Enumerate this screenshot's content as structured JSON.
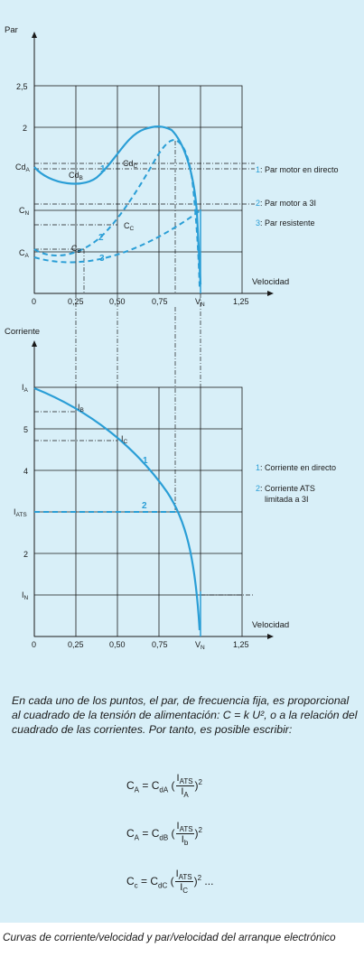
{
  "top_chart": {
    "y_title": "Par",
    "x_title": "Velocidad",
    "y_ticks": {
      "val": "2,5",
      "two": "2",
      "cda": "Cd",
      "cda_sub": "A",
      "cn": "C",
      "cn_sub": "N",
      "ca": "C",
      "ca_sub": "A"
    },
    "x_ticks": [
      "0",
      "0,25",
      "0,50",
      "0,75",
      "V",
      "1,25"
    ],
    "x_tick_vn_sub": "N",
    "points": {
      "cdb": "Cd",
      "cdb_sub": "B",
      "cdc": "Cd",
      "cdc_sub": "C",
      "cc": "C",
      "cc_sub": "C",
      "cb": "C",
      "cb_sub": "B"
    },
    "curve_numbers": [
      "1",
      "2",
      "3"
    ],
    "legend": [
      {
        "num": "1",
        "text": ": Par motor en directo"
      },
      {
        "num": "2",
        "text": ": Par motor a 3I"
      },
      {
        "num": "3",
        "text": ": Par resistente"
      }
    ]
  },
  "bottom_chart": {
    "y_title": "Corriente",
    "x_title": "Velocidad",
    "y_ticks": {
      "ia": "I",
      "ia_sub": "A",
      "five": "5",
      "four": "4",
      "iats": "I",
      "iats_sub": "ATS",
      "two": "2",
      "in": "I",
      "in_sub": "N"
    },
    "x_ticks": [
      "0",
      "0,25",
      "0,50",
      "0,75",
      "V",
      "1,25"
    ],
    "x_tick_vn_sub": "N",
    "points": {
      "ib": "I",
      "ib_sub": "B",
      "ic": "I",
      "ic_sub": "C"
    },
    "curve_numbers": [
      "1",
      "2"
    ],
    "legend": [
      {
        "num": "1",
        "text": ": Corriente en directo"
      },
      {
        "num": "2",
        "text": ": Corriente ATS",
        "text2": "limitada a 3I"
      }
    ]
  },
  "note": "En cada uno de los puntos, el par, de frecuencia fija, es proporcional al cuadrado de la tensión de alimentación: C = k U², o a la relación del cuadrado de las corrientes. Por tanto, es posible escribir:",
  "formulas": [
    {
      "lhs": "C",
      "lhs_sub": "A",
      "rhs": "= C",
      "rhs_sub": "dA",
      "num": "I",
      "num_sub": "ATS",
      "den": "I",
      "den_sub": "A",
      "exp": "2",
      "tail": ""
    },
    {
      "lhs": "C",
      "lhs_sub": "A",
      "rhs": "= C",
      "rhs_sub": "dB",
      "num": "I",
      "num_sub": "ATS",
      "den": "I",
      "den_sub": "b",
      "exp": "2",
      "tail": ""
    },
    {
      "lhs": "C",
      "lhs_sub": "c",
      "rhs": "= C",
      "rhs_sub": "dC",
      "num": "I",
      "num_sub": "ATS",
      "den": "I",
      "den_sub": "C",
      "exp": "2",
      "tail": " ..."
    }
  ],
  "caption": "Curvas de corriente/velocidad y par/velocidad del arranque electrónico",
  "colors": {
    "panel": "#d8eff8",
    "curve": "#2a9ed6",
    "axis": "#1a1a1a"
  }
}
